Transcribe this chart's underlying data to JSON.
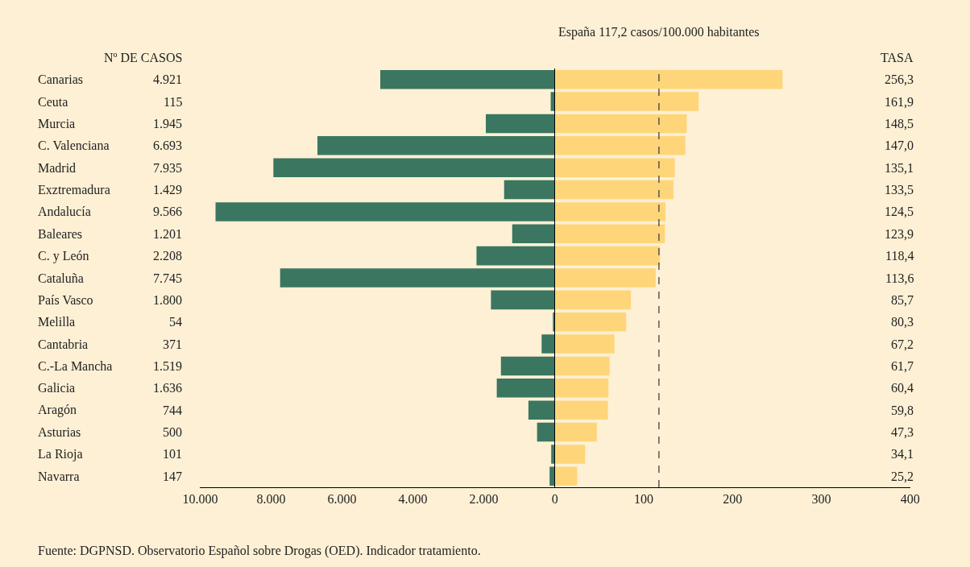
{
  "chart_data": [
    {
      "type": "bar",
      "orientation": "horizontal",
      "title": "Nº DE CASOS",
      "categories": [
        "Canarias",
        "Ceuta",
        "Murcia",
        "C. Valenciana",
        "Madrid",
        "Exztremadura",
        "Andalucía",
        "Baleares",
        "C. y León",
        "Cataluña",
        "País Vasco",
        "Melilla",
        "Cantabria",
        "C.-La Mancha",
        "Galicia",
        "Aragón",
        "Asturias",
        "La Rioja",
        "Navarra"
      ],
      "values": [
        4921,
        115,
        1945,
        6693,
        7935,
        1429,
        9566,
        1201,
        2208,
        7745,
        1800,
        54,
        371,
        1519,
        1636,
        744,
        500,
        101,
        147
      ],
      "value_labels": [
        "4.921",
        "115",
        "1.945",
        "6.693",
        "7.935",
        "1.429",
        "9.566",
        "1.201",
        "2.208",
        "7.745",
        "1.800",
        "54",
        "371",
        "1.519",
        "1.636",
        "744",
        "500",
        "101",
        "147"
      ],
      "color": "#3b7660",
      "xlim": [
        10000,
        0
      ],
      "xticks": [
        {
          "value": 10000,
          "label": "10.000"
        },
        {
          "value": 8000,
          "label": "8.000"
        },
        {
          "value": 6000,
          "label": "6.000"
        },
        {
          "value": 4000,
          "label": "4.000"
        },
        {
          "value": 2000,
          "label": "2.000"
        },
        {
          "value": 0,
          "label": null
        }
      ],
      "annotations": [
        "Fuente: DGPNSD. Observatorio Español sobre Drogas (OED). Indicador tratamiento."
      ]
    },
    {
      "type": "bar",
      "orientation": "horizontal",
      "title": "TASA",
      "tick_labels": "x",
      "categories": [
        "Canarias",
        "Ceuta",
        "Murcia",
        "C. Valenciana",
        "Madrid",
        "Exztremadura",
        "Andalucía",
        "Baleares",
        "C. y León",
        "Cataluña",
        "País Vasco",
        "Melilla",
        "Cantabria",
        "C.-La Mancha",
        "Galicia",
        "Aragón",
        "Asturias",
        "La Rioja",
        "Navarra"
      ],
      "values": [
        256.3,
        161.9,
        148.5,
        147.0,
        135.1,
        133.5,
        124.5,
        123.9,
        118.4,
        113.6,
        85.7,
        80.3,
        67.2,
        61.7,
        60.4,
        59.8,
        47.3,
        34.1,
        25.2
      ],
      "value_labels": [
        "256,3",
        "161,9",
        "148,5",
        "147,0",
        "135,1",
        "133,5",
        "124,5",
        "123,9",
        "118,4",
        "113,6",
        "85,7",
        "80,3",
        "67,2",
        "61,7",
        "60,4",
        "59,8",
        "47,3",
        "34,1",
        "25,2"
      ],
      "color": "#ffd57a",
      "xlim": [
        0,
        400
      ],
      "xticks": [
        0,
        100,
        200,
        300,
        400
      ],
      "ref_lines": [
        {
          "axis": "x",
          "value": 117.2,
          "label": "España 117,2 casos/100.000 habitantes",
          "color": "#333333",
          "line_style": "dashed"
        }
      ]
    }
  ]
}
